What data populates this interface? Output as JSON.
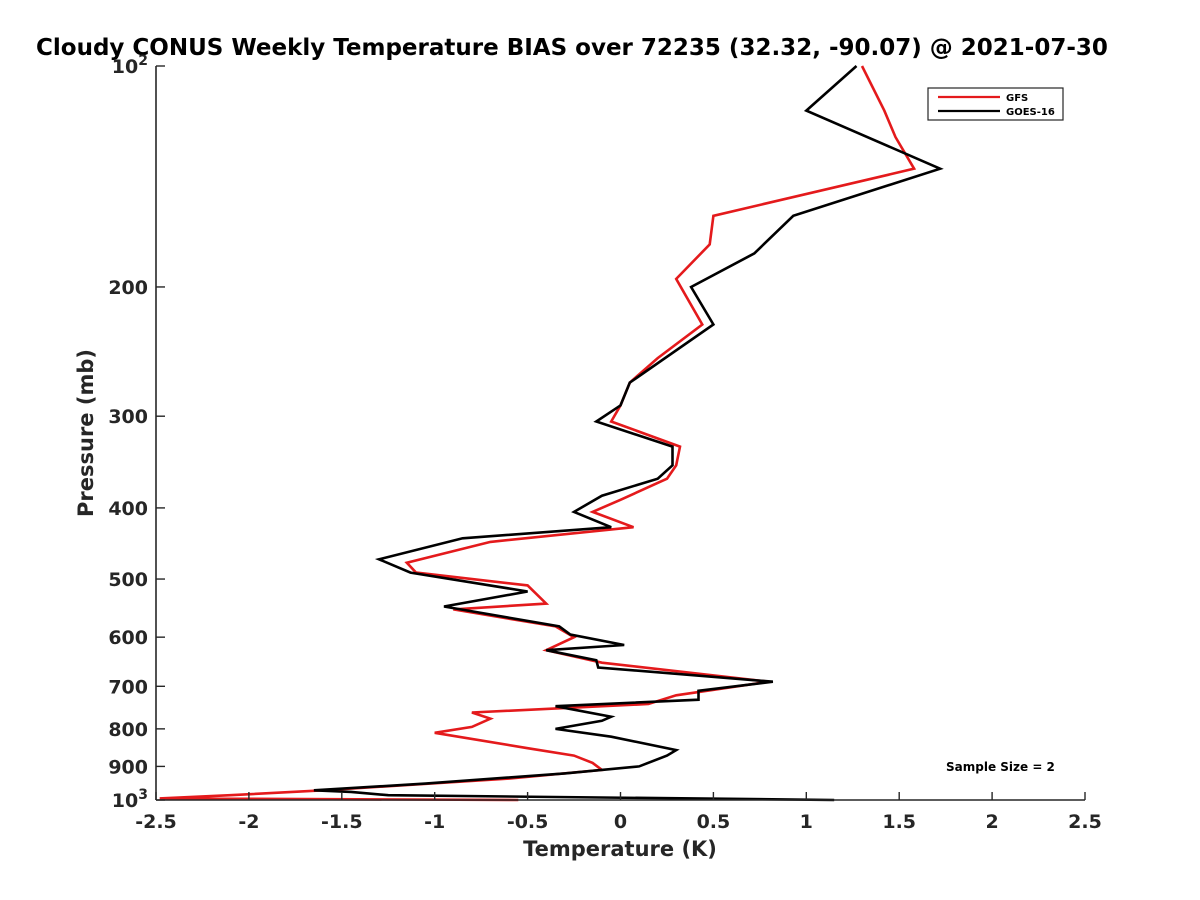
{
  "chart_data": {
    "type": "line",
    "title": "Cloudy CONUS Weekly Temperature BIAS over 72235 (32.32, -90.07) @ 2021-07-30",
    "xlabel": "Temperature (K)",
    "ylabel": "Pressure (mb)",
    "xlim": [
      -2.5,
      2.5
    ],
    "ylim": [
      100,
      1000
    ],
    "yscale": "log",
    "y_reversed": true,
    "x_ticks": [
      -2.5,
      -2,
      -1.5,
      -1,
      -0.5,
      0,
      0.5,
      1,
      1.5,
      2,
      2.5
    ],
    "x_tick_labels": [
      "-2.5",
      "-2",
      "-1.5",
      "-1",
      "-0.5",
      "0",
      "0.5",
      "1",
      "1.5",
      "2",
      "2.5"
    ],
    "y_ticks": [
      100,
      200,
      300,
      400,
      500,
      600,
      700,
      800,
      900,
      1000
    ],
    "y_tick_labels": [
      {
        "base": "10",
        "exp": "2"
      },
      {
        "base": "200",
        "exp": ""
      },
      {
        "base": "300",
        "exp": ""
      },
      {
        "base": "400",
        "exp": ""
      },
      {
        "base": "500",
        "exp": ""
      },
      {
        "base": "600",
        "exp": ""
      },
      {
        "base": "700",
        "exp": ""
      },
      {
        "base": "800",
        "exp": ""
      },
      {
        "base": "900",
        "exp": ""
      },
      {
        "base": "10",
        "exp": "3"
      }
    ],
    "legend_position": "top-right",
    "annotation": "Sample Size = 2",
    "series": [
      {
        "name": "GFS",
        "color": "#e41a1c",
        "points": [
          [
            1.3,
            100
          ],
          [
            1.42,
            115
          ],
          [
            1.48,
            125
          ],
          [
            1.58,
            138
          ],
          [
            0.5,
            160
          ],
          [
            0.48,
            175
          ],
          [
            0.3,
            195
          ],
          [
            0.44,
            225
          ],
          [
            0.2,
            250
          ],
          [
            0.05,
            270
          ],
          [
            0.0,
            290
          ],
          [
            -0.05,
            305
          ],
          [
            0.32,
            330
          ],
          [
            0.3,
            350
          ],
          [
            0.25,
            365
          ],
          [
            0.0,
            390
          ],
          [
            -0.15,
            405
          ],
          [
            0.07,
            425
          ],
          [
            -0.7,
            445
          ],
          [
            -1.15,
            475
          ],
          [
            -1.1,
            490
          ],
          [
            -0.5,
            510
          ],
          [
            -0.4,
            540
          ],
          [
            -0.9,
            550
          ],
          [
            -0.35,
            580
          ],
          [
            -0.25,
            600
          ],
          [
            -0.4,
            625
          ],
          [
            -0.1,
            650
          ],
          [
            0.8,
            690
          ],
          [
            0.3,
            720
          ],
          [
            0.15,
            740
          ],
          [
            -0.8,
            760
          ],
          [
            -0.7,
            775
          ],
          [
            -0.8,
            795
          ],
          [
            -1.0,
            810
          ],
          [
            -0.5,
            850
          ],
          [
            -0.25,
            870
          ],
          [
            -0.15,
            890
          ],
          [
            -0.1,
            910
          ],
          [
            -0.6,
            935
          ],
          [
            -1.6,
            970
          ],
          [
            -2.1,
            985
          ],
          [
            -2.48,
            995
          ],
          [
            -0.55,
            1000
          ]
        ]
      },
      {
        "name": "GOES-16",
        "color": "#000000",
        "points": [
          [
            1.27,
            100
          ],
          [
            1.0,
            115
          ],
          [
            1.72,
            138
          ],
          [
            0.93,
            160
          ],
          [
            0.72,
            180
          ],
          [
            0.38,
            200
          ],
          [
            0.5,
            225
          ],
          [
            0.05,
            270
          ],
          [
            0.0,
            290
          ],
          [
            -0.13,
            305
          ],
          [
            0.28,
            330
          ],
          [
            0.28,
            350
          ],
          [
            0.2,
            365
          ],
          [
            -0.1,
            385
          ],
          [
            -0.25,
            405
          ],
          [
            -0.05,
            425
          ],
          [
            -0.85,
            440
          ],
          [
            -1.3,
            470
          ],
          [
            -1.13,
            490
          ],
          [
            -0.5,
            520
          ],
          [
            -0.95,
            545
          ],
          [
            -0.33,
            580
          ],
          [
            -0.27,
            595
          ],
          [
            0.02,
            615
          ],
          [
            -0.4,
            625
          ],
          [
            -0.13,
            645
          ],
          [
            -0.12,
            660
          ],
          [
            0.82,
            690
          ],
          [
            0.42,
            710
          ],
          [
            0.42,
            730
          ],
          [
            -0.35,
            745
          ],
          [
            -0.05,
            770
          ],
          [
            -0.1,
            780
          ],
          [
            -0.35,
            800
          ],
          [
            -0.05,
            820
          ],
          [
            0.3,
            855
          ],
          [
            0.25,
            870
          ],
          [
            0.1,
            900
          ],
          [
            -0.3,
            920
          ],
          [
            -1.05,
            950
          ],
          [
            -1.65,
            970
          ],
          [
            -1.45,
            975
          ],
          [
            -1.25,
            985
          ],
          [
            1.15,
            1000
          ]
        ]
      }
    ]
  }
}
